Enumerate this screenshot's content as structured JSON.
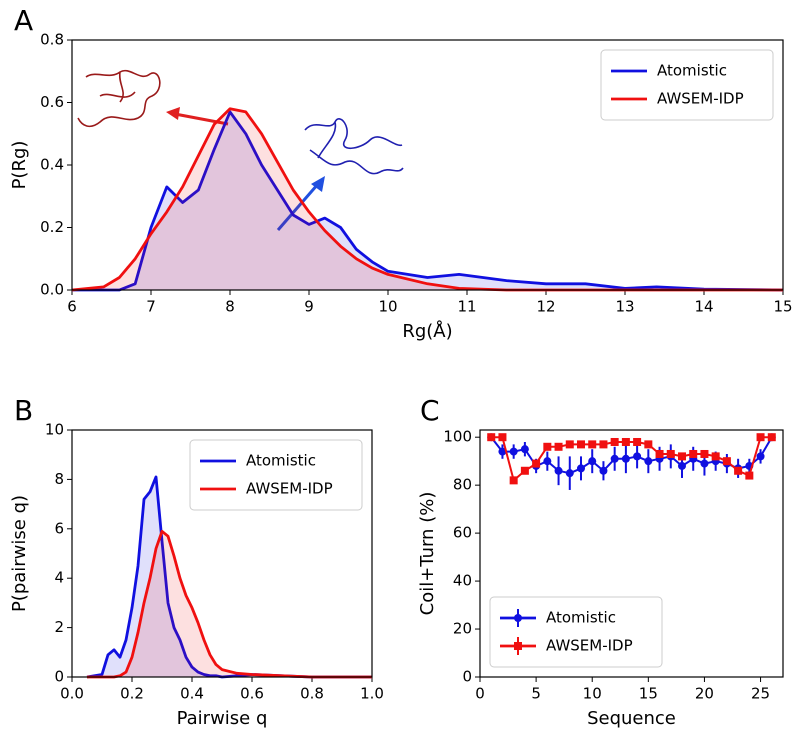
{
  "chart_data": [
    {
      "type": "line",
      "panel_label": "A",
      "xlabel": "Rg(Å)",
      "ylabel": "P(Rg)",
      "xlim": [
        6,
        15
      ],
      "xticks": [
        6,
        7,
        8,
        9,
        10,
        11,
        12,
        13,
        14,
        15
      ],
      "ylim": [
        0,
        0.8
      ],
      "yticks": [
        {
          "value": 0,
          "label": "0.0"
        },
        0.2,
        0.4,
        0.6,
        0.8
      ],
      "legend": "upper right",
      "x": [
        6,
        6.4,
        6.6,
        6.8,
        7.0,
        7.2,
        7.4,
        7.6,
        7.8,
        8.0,
        8.2,
        8.4,
        8.6,
        8.8,
        9.0,
        9.2,
        9.4,
        9.6,
        9.8,
        10.0,
        10.5,
        10.9,
        11.5,
        12,
        12.5,
        13,
        13.4,
        14,
        15
      ],
      "series": [
        {
          "name": "Atomistic",
          "color": "#1010e0",
          "values": [
            0,
            0,
            0,
            0.02,
            0.2,
            0.33,
            0.28,
            0.32,
            0.45,
            0.57,
            0.5,
            0.4,
            0.32,
            0.24,
            0.21,
            0.23,
            0.2,
            0.13,
            0.09,
            0.06,
            0.04,
            0.05,
            0.03,
            0.02,
            0.02,
            0.005,
            0.01,
            0.003,
            0
          ]
        },
        {
          "name": "AWSEM-IDP",
          "color": "#f01010",
          "values": [
            0,
            0.01,
            0.04,
            0.1,
            0.18,
            0.25,
            0.33,
            0.43,
            0.53,
            0.58,
            0.57,
            0.5,
            0.41,
            0.32,
            0.25,
            0.19,
            0.14,
            0.1,
            0.07,
            0.05,
            0.02,
            0.005,
            0,
            0,
            0,
            0,
            0,
            0,
            0
          ]
        }
      ]
    },
    {
      "type": "line",
      "panel_label": "B",
      "xlabel": "Pairwise q",
      "ylabel": "P(pairwise q)",
      "xlim": [
        0,
        1
      ],
      "xticks": [
        {
          "value": 0,
          "label": "0.0"
        },
        0.2,
        0.4,
        0.6,
        0.8,
        {
          "value": 1,
          "label": "1.0"
        }
      ],
      "ylim": [
        0,
        10
      ],
      "yticks": [
        0,
        2,
        4,
        6,
        8,
        10
      ],
      "legend": "upper right",
      "x": [
        0.05,
        0.1,
        0.12,
        0.14,
        0.16,
        0.18,
        0.2,
        0.22,
        0.24,
        0.26,
        0.28,
        0.3,
        0.32,
        0.34,
        0.36,
        0.38,
        0.4,
        0.42,
        0.44,
        0.46,
        0.48,
        0.5,
        0.55,
        0.6,
        0.7,
        0.8,
        1.0
      ],
      "series": [
        {
          "name": "Atomistic",
          "color": "#1010e0",
          "values": [
            0,
            0.1,
            0.9,
            1.1,
            0.8,
            1.5,
            2.8,
            4.5,
            7.2,
            7.5,
            8.1,
            5.5,
            3.0,
            2.0,
            1.5,
            0.8,
            0.4,
            0.2,
            0.1,
            0.05,
            0.05,
            0,
            0.05,
            0.1,
            0.05,
            0,
            0
          ]
        },
        {
          "name": "AWSEM-IDP",
          "color": "#f01010",
          "values": [
            0,
            0,
            0,
            0,
            0.05,
            0.2,
            0.8,
            1.8,
            3.0,
            4.0,
            5.2,
            5.9,
            5.7,
            4.9,
            4.0,
            3.3,
            2.8,
            2.2,
            1.5,
            0.9,
            0.5,
            0.3,
            0.15,
            0.1,
            0.05,
            0,
            0
          ]
        }
      ]
    },
    {
      "type": "errorbar",
      "panel_label": "C",
      "xlabel": "Sequence",
      "ylabel": "Coil+Turn (%)",
      "xlim": [
        0,
        27
      ],
      "xticks": [
        0,
        5,
        10,
        15,
        20,
        25
      ],
      "ylim": [
        0,
        103
      ],
      "yticks": [
        0,
        20,
        40,
        60,
        80,
        100
      ],
      "legend": "lower left",
      "x": [
        1,
        2,
        3,
        4,
        5,
        6,
        7,
        8,
        9,
        10,
        11,
        12,
        13,
        14,
        15,
        16,
        17,
        18,
        19,
        20,
        21,
        22,
        23,
        24,
        25,
        26
      ],
      "series": [
        {
          "name": "Atomistic",
          "color": "#1010e0",
          "marker": "circle",
          "values": [
            100,
            94,
            94,
            95,
            88,
            90,
            86,
            85,
            87,
            90,
            86,
            91,
            91,
            92,
            90,
            91,
            92,
            88,
            91,
            89,
            90,
            89,
            87,
            88,
            92,
            100
          ],
          "errors": [
            0,
            3,
            3,
            3,
            3,
            4,
            6,
            7,
            5,
            5,
            4,
            5,
            6,
            5,
            5,
            5,
            5,
            5,
            5,
            5,
            4,
            4,
            4,
            3,
            3,
            0
          ]
        },
        {
          "name": "AWSEM-IDP",
          "color": "#f01010",
          "marker": "square",
          "values": [
            100,
            100,
            82,
            86,
            89,
            96,
            96,
            97,
            97,
            97,
            97,
            98,
            98,
            98,
            97,
            93,
            93,
            92,
            93,
            93,
            92,
            90,
            86,
            84,
            100,
            100
          ],
          "errors": [
            1,
            1,
            1,
            1,
            1,
            1,
            1,
            1,
            1,
            1,
            1,
            1,
            1,
            1,
            1,
            1,
            1,
            1,
            1,
            1,
            1,
            1,
            1,
            1,
            1,
            1
          ]
        }
      ]
    }
  ]
}
